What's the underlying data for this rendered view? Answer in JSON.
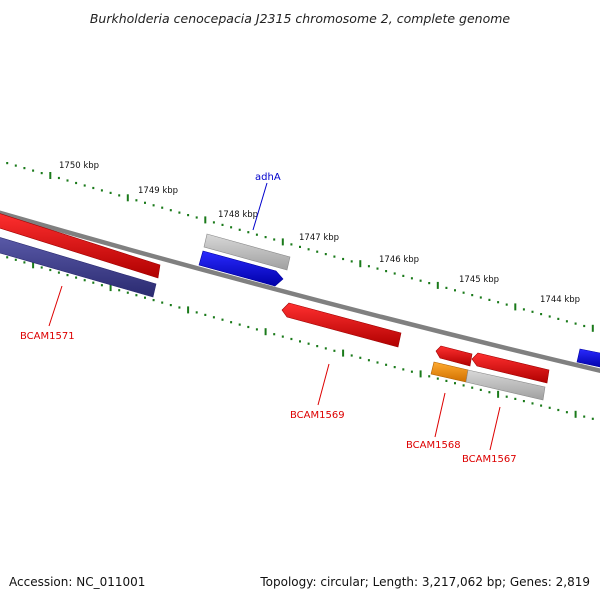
{
  "title": "Burkholderia cenocepacia J2315 chromosome 2, complete genome",
  "footer": {
    "accession": "Accession: NC_011001",
    "summary": "Topology: circular; Length: 3,217,062 bp; Genes: 2,819"
  },
  "ticks": [
    "1750 kbp",
    "1749 kbp",
    "1748 kbp",
    "1747 kbp",
    "1746 kbp",
    "1745 kbp",
    "1744 kbp"
  ],
  "gene_labels": [
    "adhA",
    "BCAM1571",
    "BCAM1569",
    "BCAM1568",
    "BCAM1567"
  ],
  "colors": {
    "backbone": "#808080",
    "tick_marks": "#1a7a1a",
    "cds_red": "#e00000",
    "cds_blue": "#0000dd",
    "cds_navy": "#3d3d8a",
    "cds_orange": "#ff8c00",
    "gene_grey": "#b8b8b8",
    "label_red": "#dd0000",
    "label_blue": "#0000cc"
  }
}
